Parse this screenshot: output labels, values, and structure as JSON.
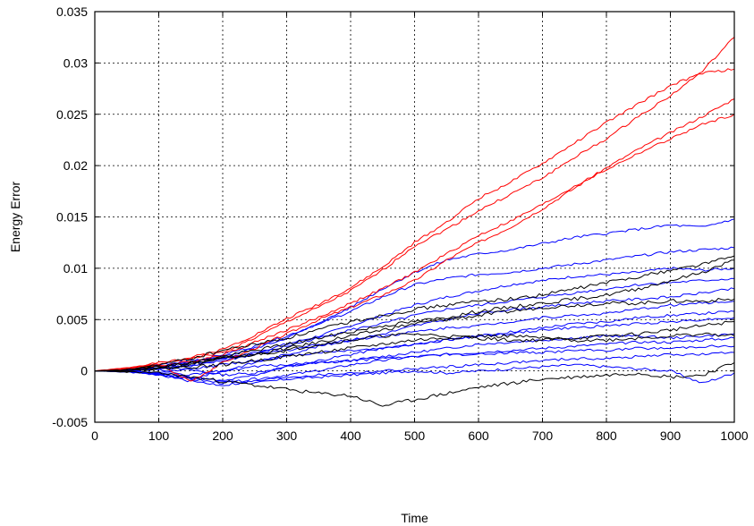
{
  "chart_data": {
    "type": "line",
    "title": "",
    "xlabel": "Time",
    "ylabel": "Energy Error",
    "xlim": [
      0,
      1000
    ],
    "ylim": [
      -0.005,
      0.035
    ],
    "grid": true,
    "legend": "none",
    "x_ticks": [
      0,
      100,
      200,
      300,
      400,
      500,
      600,
      700,
      800,
      900,
      1000
    ],
    "x_tick_labels": [
      "0",
      "100",
      "200",
      "300",
      "400",
      "500",
      "600",
      "700",
      "800",
      "900",
      "1000"
    ],
    "y_ticks": [
      -0.005,
      0,
      0.005,
      0.01,
      0.015,
      0.02,
      0.025,
      0.03,
      0.035
    ],
    "y_tick_labels": [
      "-0.005",
      "0",
      "0.005",
      "0.01",
      "0.015",
      "0.02",
      "0.025",
      "0.03",
      "0.035"
    ],
    "x": [
      0,
      50,
      100,
      150,
      200,
      250,
      300,
      350,
      400,
      450,
      500,
      550,
      600,
      650,
      700,
      750,
      800,
      850,
      900,
      950,
      1000
    ],
    "colors": {
      "red": "#ff0000",
      "blue": "#0000ff",
      "black": "#000000"
    },
    "series": [
      {
        "color": "red",
        "values": [
          0,
          0.0003,
          0.0008,
          0.0012,
          0.0018,
          0.0032,
          0.0048,
          0.0062,
          0.0078,
          0.0098,
          0.0122,
          0.0138,
          0.0156,
          0.0172,
          0.0188,
          0.0208,
          0.0226,
          0.0248,
          0.0268,
          0.0292,
          0.0325
        ]
      },
      {
        "color": "red",
        "values": [
          0,
          0.0002,
          0.0007,
          0.0013,
          0.0021,
          0.0035,
          0.0051,
          0.0065,
          0.0081,
          0.0101,
          0.0125,
          0.0145,
          0.0168,
          0.0184,
          0.0202,
          0.0222,
          0.0242,
          0.026,
          0.0278,
          0.029,
          0.0294
        ]
      },
      {
        "color": "red",
        "values": [
          0,
          0.0002,
          0.0006,
          -0.001,
          0.0008,
          0.0022,
          0.0036,
          0.005,
          0.0062,
          0.0074,
          0.0088,
          0.0108,
          0.0125,
          0.014,
          0.0158,
          0.0178,
          0.0198,
          0.0216,
          0.0232,
          0.0248,
          0.0265
        ]
      },
      {
        "color": "red",
        "values": [
          0,
          0.0001,
          0.0005,
          0.0009,
          0.0016,
          0.0028,
          0.004,
          0.0052,
          0.0066,
          0.008,
          0.0096,
          0.0114,
          0.0132,
          0.0146,
          0.0162,
          0.018,
          0.0196,
          0.0212,
          0.0226,
          0.024,
          0.025
        ]
      },
      {
        "color": "blue",
        "values": [
          0,
          0.0001,
          0.0003,
          0.0008,
          0.0014,
          0.0022,
          0.0032,
          0.0046,
          0.0062,
          0.008,
          0.0096,
          0.0108,
          0.0114,
          0.0118,
          0.0124,
          0.013,
          0.0134,
          0.0138,
          0.0142,
          0.014,
          0.0148
        ]
      },
      {
        "color": "blue",
        "values": [
          0,
          0.0001,
          0.0004,
          0.0009,
          0.0016,
          0.0024,
          0.0034,
          0.0046,
          0.0058,
          0.0072,
          0.0084,
          0.009,
          0.0094,
          0.0096,
          0.01,
          0.0104,
          0.0108,
          0.0112,
          0.0116,
          0.0118,
          0.012
        ]
      },
      {
        "color": "blue",
        "values": [
          0,
          0.0,
          0.0002,
          0.0006,
          0.0012,
          0.0018,
          0.0026,
          0.0034,
          0.0044,
          0.0054,
          0.0064,
          0.0072,
          0.0078,
          0.0084,
          0.0088,
          0.0092,
          0.0094,
          0.0096,
          0.01,
          0.0098,
          0.01
        ]
      },
      {
        "color": "blue",
        "values": [
          0,
          0.0001,
          0.0005,
          0.0004,
          0.001,
          0.0016,
          0.0024,
          0.0032,
          0.004,
          0.0046,
          0.0054,
          0.006,
          0.0064,
          0.0068,
          0.0072,
          0.0076,
          0.008,
          0.0084,
          0.0086,
          0.0088,
          0.009
        ]
      },
      {
        "color": "blue",
        "values": [
          0,
          -0.0001,
          -0.0004,
          -0.0008,
          0.0,
          0.0008,
          0.0016,
          0.0024,
          0.003,
          0.0036,
          0.0044,
          0.005,
          0.0056,
          0.006,
          0.0062,
          0.0066,
          0.0068,
          0.007,
          0.0072,
          0.0076,
          0.008
        ]
      },
      {
        "color": "blue",
        "values": [
          0,
          0.0002,
          0.0006,
          0.001,
          0.0012,
          0.0016,
          0.002,
          0.0026,
          0.003,
          0.0034,
          0.0038,
          0.0042,
          0.0044,
          0.0048,
          0.0052,
          0.0054,
          0.0056,
          0.006,
          0.0064,
          0.0066,
          0.0068
        ]
      },
      {
        "color": "blue",
        "values": [
          0,
          0.0001,
          0.0002,
          -0.0006,
          -0.001,
          -0.0004,
          0.0004,
          0.001,
          0.0016,
          0.0022,
          0.0026,
          0.003,
          0.0034,
          0.0038,
          0.0042,
          0.0046,
          0.0048,
          0.0052,
          0.0054,
          0.0056,
          0.0058
        ]
      },
      {
        "color": "blue",
        "values": [
          0,
          0.0,
          -0.0002,
          0.0002,
          0.0006,
          0.001,
          0.0014,
          0.0018,
          0.002,
          0.0022,
          0.0026,
          0.003,
          0.0034,
          0.0036,
          0.004,
          0.0042,
          0.0044,
          0.0046,
          0.0048,
          0.005,
          0.0052
        ]
      },
      {
        "color": "blue",
        "values": [
          0,
          0.0001,
          0.0003,
          0.0001,
          -0.0004,
          -0.0002,
          0.0004,
          0.0008,
          0.001,
          0.0014,
          0.0018,
          0.0022,
          0.0026,
          0.0028,
          0.003,
          0.0032,
          0.0034,
          0.0034,
          0.0032,
          0.0034,
          0.0036
        ]
      },
      {
        "color": "blue",
        "values": [
          0,
          -0.0001,
          -0.0003,
          -0.0008,
          -0.0012,
          -0.0008,
          -0.0004,
          0.0,
          0.0006,
          0.001,
          0.0014,
          0.0016,
          0.0018,
          0.002,
          0.0022,
          0.0024,
          0.0026,
          0.0028,
          0.0028,
          0.003,
          0.0032
        ]
      },
      {
        "color": "blue",
        "values": [
          0,
          0.0,
          -0.0002,
          -0.0004,
          0.0,
          0.0004,
          0.0006,
          0.0008,
          0.001,
          0.0012,
          0.0014,
          0.0016,
          0.0016,
          0.0018,
          0.0018,
          0.002,
          0.002,
          0.0022,
          0.0022,
          0.0024,
          0.0024
        ]
      },
      {
        "color": "blue",
        "values": [
          0,
          -0.0001,
          -0.0004,
          -0.001,
          -0.0014,
          -0.001,
          -0.0006,
          -0.0004,
          -0.0002,
          0.0,
          0.0002,
          0.0004,
          0.0006,
          0.0008,
          0.001,
          0.0012,
          0.0012,
          0.0014,
          0.0016,
          0.0016,
          0.0018
        ]
      },
      {
        "color": "blue",
        "values": [
          0,
          0.0,
          -0.0003,
          -0.0006,
          -0.001,
          -0.0012,
          -0.0008,
          -0.0006,
          -0.0004,
          -0.0002,
          0.0,
          -0.0002,
          0.0,
          0.0002,
          0.0004,
          0.0006,
          0.0004,
          0.0002,
          0.0,
          -0.0012,
          -0.0002
        ]
      },
      {
        "color": "black",
        "values": [
          0,
          0.0001,
          0.0006,
          0.0012,
          0.002,
          0.0026,
          0.0032,
          0.004,
          0.0048,
          0.0054,
          0.006,
          0.0064,
          0.0068,
          0.007,
          0.0074,
          0.008,
          0.0086,
          0.0092,
          0.0098,
          0.0104,
          0.0112
        ]
      },
      {
        "color": "black",
        "values": [
          0,
          0.0001,
          0.0004,
          0.0008,
          0.0014,
          0.002,
          0.0026,
          0.0032,
          0.0038,
          0.0044,
          0.0048,
          0.0052,
          0.0058,
          0.0062,
          0.0066,
          0.007,
          0.0074,
          0.008,
          0.0088,
          0.0096,
          0.0108
        ]
      },
      {
        "color": "black",
        "values": [
          0,
          0.0,
          0.0003,
          0.0006,
          0.0012,
          0.0016,
          0.0022,
          0.0028,
          0.0034,
          0.004,
          0.0046,
          0.005,
          0.0054,
          0.0058,
          0.0062,
          0.0064,
          0.0066,
          0.0066,
          0.0068,
          0.0068,
          0.007
        ]
      },
      {
        "color": "black",
        "values": [
          0,
          0.0001,
          0.0004,
          0.0008,
          0.0012,
          0.0016,
          0.002,
          0.0026,
          0.003,
          0.0034,
          0.0036,
          0.0034,
          0.0032,
          0.003,
          0.003,
          0.0032,
          0.0034,
          0.0036,
          0.004,
          0.0044,
          0.0048
        ]
      },
      {
        "color": "black",
        "values": [
          0,
          0.0,
          0.0002,
          0.0004,
          0.0006,
          0.001,
          0.0014,
          0.0018,
          0.0022,
          0.0026,
          0.003,
          0.0032,
          0.0034,
          0.0034,
          0.0032,
          0.003,
          0.003,
          0.0032,
          0.0034,
          0.0036,
          0.0034
        ]
      },
      {
        "color": "black",
        "values": [
          0,
          -0.0001,
          -0.0002,
          -0.0006,
          -0.001,
          -0.0014,
          -0.0018,
          -0.0022,
          -0.0024,
          -0.0034,
          -0.0028,
          -0.0022,
          -0.0016,
          -0.0012,
          -0.0008,
          -0.0006,
          -0.0004,
          -0.0002,
          -0.0006,
          -0.0004,
          0.0008
        ]
      }
    ]
  }
}
